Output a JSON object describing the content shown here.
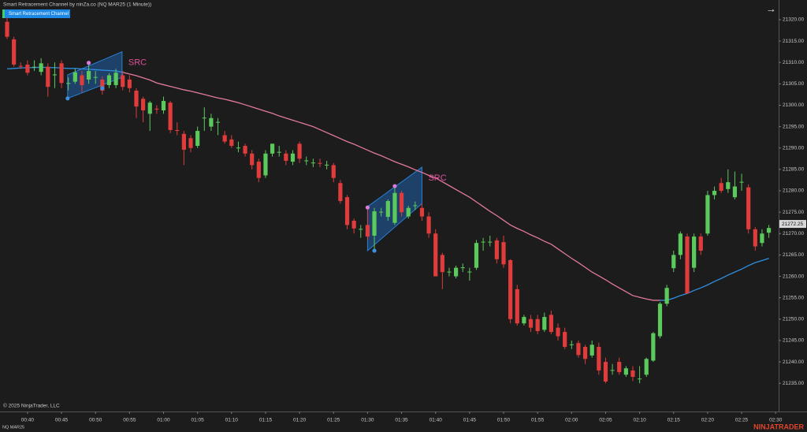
{
  "chart_data": {
    "type": "candlestick",
    "title": "Smart Retracement Channel by ninZa.co (NQ MAR25 (1 Minute))",
    "indicator_label": "Smart Retracement Channel",
    "instrument": "NQ MAR25",
    "copyright": "© 2025 NinjaTrader, LLC",
    "logo": "NINJATRADER",
    "up_color": "#5cc95c",
    "down_color": "#e03c3c",
    "categories": [
      null,
      null,
      null,
      "00:40",
      null,
      null,
      null,
      null,
      "00:45",
      null,
      null,
      null,
      null,
      "00:50",
      null,
      null,
      null,
      null,
      "00:55",
      null,
      null,
      null,
      null,
      "01:00",
      null,
      null,
      null,
      null,
      "01:05",
      null,
      null,
      null,
      null,
      "01:10",
      null,
      null,
      null,
      null,
      "01:15",
      null,
      null,
      null,
      null,
      "01:20",
      null,
      null,
      null,
      null,
      "01:25",
      null,
      null,
      null,
      null,
      "01:30",
      null,
      null,
      null,
      null,
      "01:35",
      null,
      null,
      null,
      null,
      "01:40",
      null,
      null,
      null,
      null,
      "01:45",
      null,
      null,
      null,
      null,
      "01:50",
      null,
      null,
      null,
      null,
      "01:55",
      null,
      null,
      null,
      null,
      "02:00",
      null,
      null,
      null,
      null,
      "02:05",
      null,
      null,
      null,
      null,
      "02:10",
      null,
      null,
      null,
      null,
      "02:15",
      null,
      null,
      null,
      null,
      "02:20",
      null,
      null,
      null,
      null,
      "02:25",
      null,
      null,
      null,
      null,
      "02:30"
    ],
    "open": [
      21319.5,
      21315.4,
      21309.2,
      21309.5,
      21309,
      21307.8,
      21309,
      21307,
      21309.8,
      21305,
      21305.5,
      21307,
      21306,
      21306.5,
      21306,
      21304.7,
      21304.7,
      21307,
      21306,
      21303.4,
      21301.5,
      21298,
      21299.2,
      21298.8,
      21300.6,
      21294.2,
      21293.3,
      21292.3,
      21290.5,
      21297,
      21295,
      21296,
      21293,
      21292,
      21290,
      21290.5,
      21288.7,
      21286.8,
      21283.6,
      21288.7,
      21289,
      21288.7,
      21286.8,
      21291,
      21287,
      21286.5,
      21286.5,
      21286,
      21286,
      21281.8,
      21278.5,
      21273,
      21271,
      21272,
      21269.5,
      21275,
      21273.9,
      21272.5,
      21279.5,
      21274,
      21276.5,
      21276,
      21274,
      21270,
      21265,
      21261,
      21260,
      21262,
      21261,
      21262,
      21268,
      21268,
      21268.4,
      21268,
      21263.8,
      21257,
      21249,
      21250,
      21250,
      21247.5,
      21251,
      21248,
      21247,
      21244,
      21244.4,
      21243.5,
      21241.5,
      21243.5,
      21240,
      21238,
      21240,
      21237,
      21238,
      21236,
      21237,
      21240.3,
      21246,
      21253.6,
      21261.9,
      21265,
      21269.3,
      21262,
      21269.3,
      21270,
      21279,
      21281.8,
      21280.4,
      21278.5,
      21282,
      21280.8,
      21271,
      21267.8,
      21270.2,
      null
    ],
    "high": [
      21320.5,
      21316,
      21310,
      21310.5,
      21310.5,
      21311,
      21309.8,
      21310,
      21310.5,
      21306.5,
      21308.5,
      21308,
      21310,
      21308,
      21306.8,
      21307.5,
      21308.5,
      21308,
      21307,
      21304,
      21302,
      21301,
      21300,
      21302,
      21301,
      21296,
      21294,
      21293,
      21295,
      21299.5,
      21298,
      21297,
      21294,
      21293,
      21291.5,
      21291,
      21289.5,
      21287.5,
      21289.5,
      21291,
      21290.5,
      21289.5,
      21289.5,
      21291.5,
      21288,
      21287.5,
      21287.5,
      21287,
      21286.5,
      21282.5,
      21279,
      21273.5,
      21272,
      21276,
      21276,
      21276,
      21278,
      21281,
      21280,
      21276.5,
      21277.5,
      21277,
      21275,
      21271,
      21265.5,
      21262,
      21262.5,
      21263,
      21262,
      21268.5,
      21269,
      21269.5,
      21269,
      21269.5,
      21264,
      21258,
      21251,
      21251,
      21251,
      21251.5,
      21252,
      21249,
      21248,
      21245,
      21245,
      21244,
      21245,
      21244.5,
      21241,
      21239.5,
      21241,
      21239,
      21239,
      21239,
      21241,
      21247,
      21254,
      21258,
      21266,
      21270.5,
      21270,
      21270,
      21270,
      21280,
      21281,
      21283,
      21285,
      21284.5,
      21284,
      21281.5,
      21271.5,
      21271,
      21272,
      null
    ],
    "low": [
      21315.5,
      21309,
      21308.5,
      21307,
      21308,
      21307,
      21302,
      21304,
      21304,
      21303.5,
      21305,
      21303,
      21305,
      21305,
      21302.5,
      21304,
      21304,
      21303.5,
      21303,
      21297,
      21296,
      21294,
      21298,
      21298,
      21293.5,
      21293,
      21286,
      21289,
      21290,
      21294,
      21294,
      21293,
      21291,
      21290,
      21289,
      21288,
      21285,
      21282,
      21283,
      21288,
      21288,
      21286,
      21286,
      21286.5,
      21286,
      21285.5,
      21285.5,
      21285,
      21282,
      21277,
      21271,
      21270,
      21269,
      21268.5,
      21266,
      21274,
      21273,
      21272,
      21274,
      21273.5,
      21275.5,
      21273,
      21269,
      21260,
      21257,
      21260,
      21259.5,
      21261,
      21259,
      21261.5,
      21266,
      21267,
      21263,
      21262,
      21249,
      21248.5,
      21248.5,
      21247,
      21246.5,
      21247,
      21246.5,
      21245,
      21243,
      21243,
      21241,
      21239.5,
      21241,
      21237,
      21235,
      21237,
      21237,
      21236.5,
      21235.5,
      21235,
      21236.5,
      21240,
      21245.5,
      21253,
      21261,
      21264,
      21256,
      21261,
      21265,
      21269.5,
      21278,
      21279.5,
      21279.5,
      21278,
      21280,
      21270,
      21266,
      21267,
      21269,
      null
    ],
    "close": [
      21316,
      21309.5,
      21309,
      21307.6,
      21309,
      21309.8,
      21304.3,
      21307.2,
      21305.2,
      21305.2,
      21307.7,
      21304.7,
      21308,
      21306.6,
      21303.4,
      21307,
      21307.6,
      21304.3,
      21304,
      21299.7,
      21298.8,
      21300.6,
      21299,
      21301,
      21294.2,
      21294,
      21289.6,
      21290,
      21294,
      21297.1,
      21297,
      21296.1,
      21291.5,
      21290.5,
      21290.1,
      21288.7,
      21286,
      21283,
      21288.7,
      21291,
      21289.1,
      21287,
      21288.7,
      21287.5,
      21287.1,
      21286.6,
      21286.4,
      21286.1,
      21283,
      21277.6,
      21272,
      21271.2,
      21271.1,
      21269.3,
      21275.2,
      21275.1,
      21277.6,
      21279.5,
      21275,
      21276,
      21276.6,
      21274,
      21270,
      21260,
      21261,
      21261.1,
      21262,
      21262.1,
      21261.1,
      21267.8,
      21268.1,
      21268.1,
      21264,
      21262.8,
      21250,
      21249,
      21250.5,
      21248,
      21247.2,
      21250.5,
      21247,
      21246,
      21243.5,
      21244.1,
      21241.6,
      21240.7,
      21244,
      21238,
      21235.4,
      21238.1,
      21237.6,
      21238.5,
      21236.5,
      21236.1,
      21240.7,
      21246.7,
      21253.6,
      21257.3,
      21265,
      21270,
      21256,
      21269.3,
      21266,
      21279,
      21280,
      21280,
      21282,
      21281,
      21282.1,
      21271,
      21267,
      21270,
      21271.3,
      null
    ],
    "lines": [
      {
        "color": "#2f8fe0",
        "values": [
          21308.5,
          21308.6,
          21308.7,
          21308.8,
          21308.8,
          21308.9,
          21308.8,
          21308.8,
          21308.7,
          21308.6,
          21308.6,
          21308.5,
          21308.4,
          21308.3,
          21308.2,
          21308.1,
          21308.0,
          21307.7,
          null,
          null,
          null,
          null,
          null,
          null,
          null,
          null,
          null,
          null,
          null,
          null,
          null,
          null,
          null,
          null,
          null,
          null,
          null,
          null,
          null,
          null,
          null,
          null,
          null,
          null,
          null,
          null,
          null,
          null,
          null,
          null,
          null,
          null,
          null,
          null,
          null,
          null,
          null,
          null,
          null,
          null,
          null,
          null,
          null,
          null,
          null,
          null,
          null,
          null,
          null,
          null,
          null,
          null,
          null,
          null,
          null,
          null,
          null,
          null,
          null,
          null,
          null,
          null,
          null,
          null,
          null,
          null,
          null,
          null,
          null,
          null,
          null,
          null,
          null,
          null,
          null,
          null,
          21254.4,
          21254.4,
          21254.9,
          21255.5,
          21256.0,
          21256.7,
          21257.3,
          21258.0,
          21258.8,
          21259.5,
          21260.3,
          21261.0,
          21261.7,
          21262.5,
          21263.2,
          21263.7,
          21264.2,
          null
        ]
      },
      {
        "color": "#e27a9a",
        "values": [
          null,
          null,
          null,
          null,
          null,
          null,
          null,
          null,
          null,
          null,
          null,
          null,
          null,
          null,
          null,
          null,
          null,
          21307.7,
          21307.3,
          21306.9,
          21306.4,
          21305.9,
          21305.2,
          21304.8,
          21304.4,
          21304.0,
          21303.6,
          21303.3,
          21302.9,
          21302.5,
          21302.1,
          21301.7,
          21301.4,
          21301.0,
          21300.6,
          21300.1,
          21299.6,
          21299.1,
          21298.6,
          21298.1,
          21297.5,
          21297.0,
          21296.5,
          21296.0,
          21295.5,
          21295.0,
          21294.3,
          21293.6,
          21292.9,
          21292.2,
          21291.5,
          21290.9,
          21290.2,
          21289.5,
          21288.8,
          21288.2,
          21287.5,
          21286.8,
          21286.2,
          21285.6,
          21284.9,
          21284.3,
          21283.6,
          21283.0,
          21282.1,
          21281.2,
          21280.3,
          21279.4,
          21278.5,
          21277.4,
          21276.3,
          21275.2,
          21274.2,
          21273.1,
          21272.0,
          21271.2,
          21270.5,
          21269.7,
          21269.0,
          21268.2,
          21267.5,
          21266.4,
          21265.3,
          21264.2,
          21263.2,
          21262.1,
          21261.0,
          21260.1,
          21259.2,
          21258.2,
          21257.3,
          21256.4,
          21255.5,
          21255.1,
          21254.7,
          21254.4,
          21254.4,
          null,
          null,
          null,
          null,
          null,
          null,
          null,
          null,
          null,
          null,
          null,
          null,
          null,
          null,
          null,
          null,
          null
        ]
      }
    ],
    "channels": [
      {
        "label": "SRC",
        "x": [
          8.9,
          16.9
        ],
        "upper": [
          21307.1,
          21312.5
        ],
        "lower": [
          21301.6,
          21306.5
        ],
        "pivots": [
          {
            "x": 8.9,
            "y": 21301.6,
            "color": "#3d8fe0"
          },
          {
            "x": 12,
            "y": 21309.9,
            "color": "#d97bd9"
          },
          {
            "x": 14,
            "y": 21304.0,
            "color": "#3d8fe0"
          }
        ]
      },
      {
        "label": "SRC",
        "x": [
          53,
          61
        ],
        "upper": [
          21276.3,
          21285.5
        ],
        "lower": [
          21266.0,
          21277.0
        ],
        "pivots": [
          {
            "x": 53,
            "y": 21276.1,
            "color": "#d97bd9"
          },
          {
            "x": 57,
            "y": 21281.1,
            "color": "#d97bd9"
          },
          {
            "x": 54,
            "y": 21266.0,
            "color": "#3d8fe0"
          }
        ]
      }
    ],
    "last_price": 21272.25,
    "ylim": [
      21228.4,
      21324.6
    ],
    "yticks": [
      {
        "value": 21235,
        "label": "21235.00"
      },
      {
        "value": 21240,
        "label": "21240.00"
      },
      {
        "value": 21245,
        "label": "21245.00"
      },
      {
        "value": 21250,
        "label": "21250.00"
      },
      {
        "value": 21255,
        "label": "21255.00"
      },
      {
        "value": 21260,
        "label": "21260.00"
      },
      {
        "value": 21265,
        "label": "21265.00"
      },
      {
        "value": 21270,
        "label": "21270.00"
      },
      {
        "value": 21275,
        "label": "21275.00"
      },
      {
        "value": 21280,
        "label": "21280.00"
      },
      {
        "value": 21285,
        "label": "21285.00"
      },
      {
        "value": 21290,
        "label": "21290.00"
      },
      {
        "value": 21295,
        "label": "21295.00"
      },
      {
        "value": 21300,
        "label": "21300.00"
      },
      {
        "value": 21305,
        "label": "21305.00"
      },
      {
        "value": 21310,
        "label": "21310.00"
      },
      {
        "value": 21315,
        "label": "21315.00"
      },
      {
        "value": 21320,
        "label": "21320.00"
      }
    ],
    "grid": false
  }
}
